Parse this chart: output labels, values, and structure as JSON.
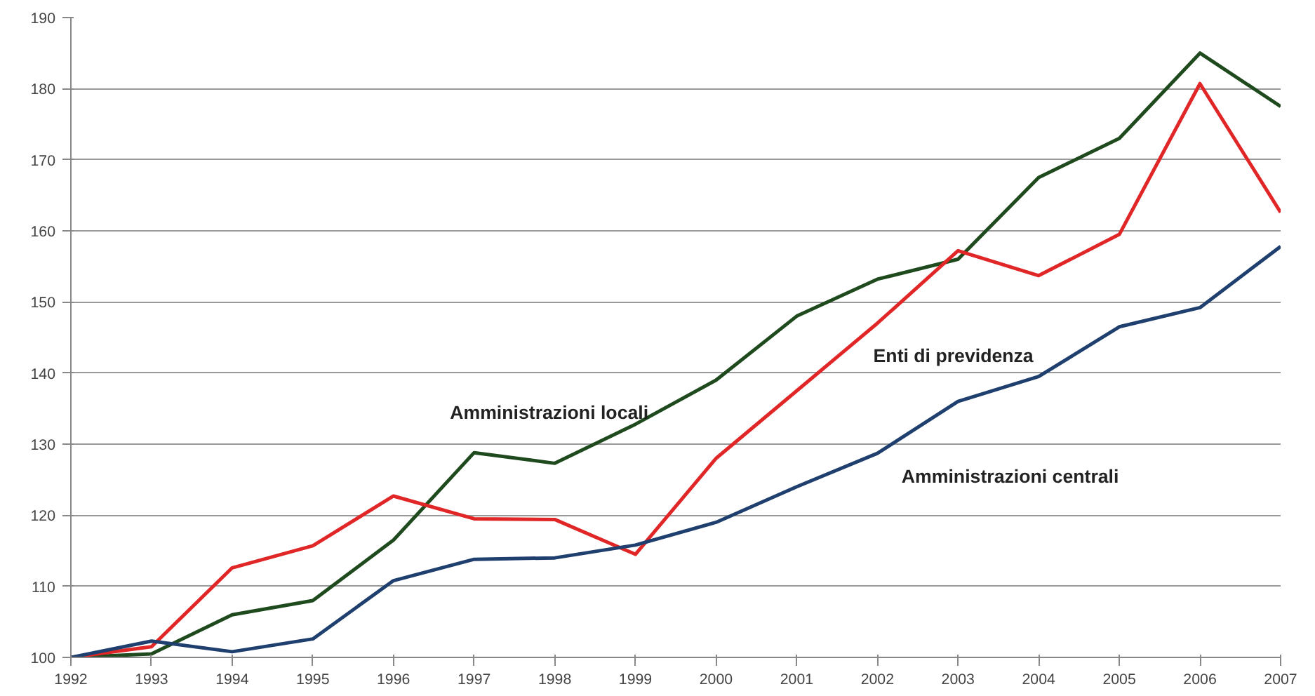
{
  "chart_data": {
    "type": "line",
    "x": [
      1992,
      1993,
      1994,
      1995,
      1996,
      1997,
      1998,
      1999,
      2000,
      2001,
      2002,
      2003,
      2004,
      2005,
      2006,
      2007
    ],
    "series": [
      {
        "name": "Amministrazioni locali",
        "color": "#1e4a1e",
        "values": [
          100,
          100.5,
          106,
          108,
          116.5,
          128.8,
          127.3,
          132.8,
          139,
          148,
          153.2,
          156,
          167.5,
          173,
          185,
          177.5
        ]
      },
      {
        "name": "Enti di previdenza",
        "color": "#e02626",
        "values": [
          100,
          101.5,
          112.6,
          115.7,
          122.7,
          119.5,
          119.4,
          114.5,
          128,
          137.5,
          147,
          157.2,
          153.7,
          159.5,
          180.7,
          162.6
        ]
      },
      {
        "name": "Amministrazioni centrali",
        "color": "#1f3f6e",
        "values": [
          100,
          102.3,
          100.8,
          102.6,
          110.8,
          113.8,
          114,
          115.8,
          119,
          124,
          128.7,
          136,
          139.5,
          146.5,
          149.2,
          157.8
        ]
      }
    ],
    "xlim": [
      1992,
      2007
    ],
    "xticks": [
      1992,
      1993,
      1994,
      1995,
      1996,
      1997,
      1998,
      1999,
      2000,
      2001,
      2002,
      2003,
      2004,
      2005,
      2006,
      2007
    ],
    "ylim": [
      100,
      190
    ],
    "yticks": [
      100,
      110,
      120,
      130,
      140,
      150,
      160,
      170,
      180,
      190
    ],
    "grid": "y",
    "legend": false,
    "marker": "none",
    "line_style": "solid"
  }
}
